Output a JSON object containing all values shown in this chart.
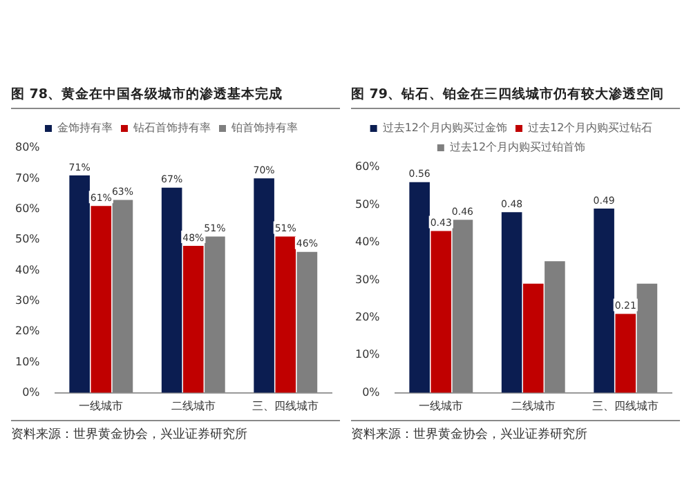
{
  "chart_data": [
    {
      "type": "bar",
      "title": "图 78、黄金在中国各级城市的渗透基本完成",
      "categories": [
        "一线城市",
        "二线城市",
        "三、四线城市"
      ],
      "series": [
        {
          "name": "金饰持有率",
          "color": "#0b1d51",
          "values": [
            71,
            67,
            70
          ],
          "value_labels": [
            "71%",
            "67%",
            "70%"
          ]
        },
        {
          "name": "钻石首饰持有率",
          "color": "#c00000",
          "values": [
            61,
            48,
            51
          ],
          "value_labels": [
            "61%",
            "48%",
            "51%"
          ]
        },
        {
          "name": "铂首饰持有率",
          "color": "#7f7f7f",
          "values": [
            63,
            51,
            46
          ],
          "value_labels": [
            "63%",
            "51%",
            "46%"
          ]
        }
      ],
      "ylim": [
        0,
        80
      ],
      "yticks": [
        {
          "value": 0,
          "label": "0%"
        },
        {
          "value": 10,
          "label": "10%"
        },
        {
          "value": 20,
          "label": "20%"
        },
        {
          "value": 30,
          "label": "30%"
        },
        {
          "value": 40,
          "label": "40%"
        },
        {
          "value": 50,
          "label": "50%"
        },
        {
          "value": 60,
          "label": "60%"
        },
        {
          "value": 70,
          "label": "70%"
        },
        {
          "value": 80,
          "label": "80%"
        }
      ],
      "legend": "top",
      "annotations": [
        "资料来源：世界黄金协会，兴业证券研究所"
      ]
    },
    {
      "type": "bar",
      "title": "图 79、钻石、铂金在三四线城市仍有较大渗透空间",
      "categories": [
        "一线城市",
        "二线城市",
        "三、四线城市"
      ],
      "series": [
        {
          "name": "过去12个月内购买过金饰",
          "color": "#0b1d51",
          "values": [
            0.56,
            0.48,
            0.49
          ],
          "value_labels": [
            "0.56",
            "0.48",
            "0.49"
          ]
        },
        {
          "name": "过去12个月内购买过钻石",
          "color": "#c00000",
          "values": [
            0.43,
            0.29,
            0.21
          ],
          "value_labels": [
            "0.43",
            null,
            "0.21"
          ]
        },
        {
          "name": "过去12个月内购买过铂首饰",
          "color": "#7f7f7f",
          "values": [
            0.46,
            0.35,
            0.29
          ],
          "value_labels": [
            "0.46",
            null,
            null
          ]
        }
      ],
      "ylim": [
        0,
        0.6
      ],
      "yticks": [
        {
          "value": 0,
          "label": "0%"
        },
        {
          "value": 0.1,
          "label": "10%"
        },
        {
          "value": 0.2,
          "label": "20%"
        },
        {
          "value": 0.3,
          "label": "30%"
        },
        {
          "value": 0.4,
          "label": "40%"
        },
        {
          "value": 0.5,
          "label": "50%"
        },
        {
          "value": 0.6,
          "label": "60%"
        }
      ],
      "legend": "top",
      "annotations": [
        "资料来源：世界黄金协会，兴业证券研究所"
      ]
    }
  ]
}
